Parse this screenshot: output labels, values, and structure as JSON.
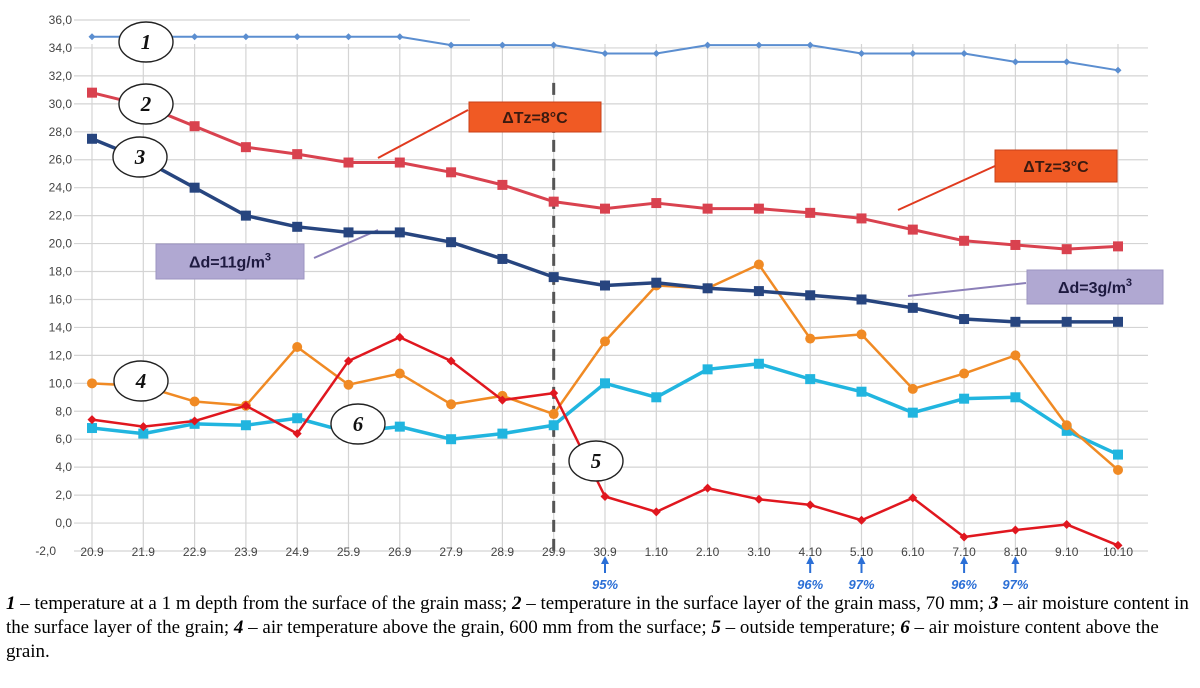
{
  "chart_data": {
    "type": "line",
    "categories": [
      "20.9",
      "21.9",
      "22.9",
      "23.9",
      "24.9",
      "25.9",
      "26.9",
      "27.9",
      "28.9",
      "29.9",
      "30.9",
      "1.10",
      "2.10",
      "3.10",
      "4.10",
      "5.10",
      "6.10",
      "7.10",
      "8.10",
      "9.10",
      "10.10"
    ],
    "yticks": [
      "-2,0",
      "0,0",
      "2,0",
      "4,0",
      "6,0",
      "8,0",
      "10,0",
      "12,0",
      "14,0",
      "16,0",
      "18,0",
      "20,0",
      "22,0",
      "24,0",
      "26,0",
      "28,0",
      "30,0",
      "32,0",
      "34,0",
      "36,0"
    ],
    "ylim": [
      -2,
      36
    ],
    "grid": true,
    "series": [
      {
        "name": "1",
        "color": "#5b8ed0",
        "marker": "diamond",
        "values": [
          34.8,
          34.8,
          34.8,
          34.8,
          34.8,
          34.8,
          34.8,
          34.2,
          34.2,
          34.2,
          33.6,
          33.6,
          34.2,
          34.2,
          34.2,
          33.6,
          33.6,
          33.6,
          33.0,
          33.0,
          32.4
        ]
      },
      {
        "name": "2",
        "color": "#d9424f",
        "marker": "square",
        "values": [
          30.8,
          29.9,
          28.4,
          26.9,
          26.4,
          25.8,
          25.8,
          25.1,
          24.2,
          23.0,
          22.5,
          22.9,
          22.5,
          22.5,
          22.2,
          21.8,
          21.0,
          20.2,
          19.9,
          19.6,
          19.8
        ]
      },
      {
        "name": "3",
        "color": "#27457f",
        "marker": "square",
        "values": [
          27.5,
          26.0,
          24.0,
          22.0,
          21.2,
          20.8,
          20.8,
          20.1,
          18.9,
          17.6,
          17.0,
          17.2,
          16.8,
          16.6,
          16.3,
          16.0,
          15.4,
          14.6,
          14.4,
          14.4,
          14.4
        ]
      },
      {
        "name": "4",
        "color": "#f08a24",
        "marker": "circle",
        "values": [
          10.0,
          9.8,
          8.7,
          8.4,
          12.6,
          9.9,
          10.7,
          8.5,
          9.1,
          7.8,
          13.0,
          17.0,
          16.8,
          18.5,
          13.2,
          13.5,
          9.6,
          10.7,
          12.0,
          7.0,
          3.8
        ]
      },
      {
        "name": "5",
        "color": "#e0171f",
        "marker": "diamond",
        "values": [
          7.4,
          6.9,
          7.3,
          8.4,
          6.4,
          11.6,
          13.3,
          11.6,
          8.8,
          9.3,
          1.9,
          0.8,
          2.5,
          1.7,
          1.3,
          0.2,
          1.8,
          -1.0,
          -0.5,
          -0.1,
          -1.6
        ]
      },
      {
        "name": "6",
        "color": "#21b5df",
        "marker": "square",
        "values": [
          6.8,
          6.4,
          7.1,
          7.0,
          7.5,
          6.5,
          6.9,
          6.0,
          6.4,
          7.0,
          10.0,
          9.0,
          11.0,
          11.4,
          10.3,
          9.4,
          7.9,
          8.9,
          9.0,
          6.6,
          4.9
        ]
      }
    ],
    "divider_category": "29.9",
    "series_labels": [
      {
        "text": "1",
        "series": "1"
      },
      {
        "text": "2",
        "series": "2"
      },
      {
        "text": "3",
        "series": "3"
      },
      {
        "text": "4",
        "series": "4"
      },
      {
        "text": "5",
        "series": "5"
      },
      {
        "text": "6",
        "series": "6"
      }
    ],
    "annotations": [
      {
        "text": "ΔTz=8°C",
        "style": "orange"
      },
      {
        "text": "ΔTz=3°C",
        "style": "orange"
      },
      {
        "text": "Δd=11g/m",
        "sup": "3",
        "style": "purple"
      },
      {
        "text": "Δd=3g/m",
        "sup": "3",
        "style": "purple"
      }
    ],
    "humidity_markers": [
      {
        "category": "30.9",
        "text": "95%"
      },
      {
        "category": "4.10",
        "text": "96%"
      },
      {
        "category": "5.10",
        "text": "97%"
      },
      {
        "category": "7.10",
        "text": "96%"
      },
      {
        "category": "8.10",
        "text": "97%"
      }
    ]
  },
  "caption": {
    "parts": [
      {
        "num": "1",
        "text": " – temperature at a 1 m depth from the surface of the grain mass; "
      },
      {
        "num": "2",
        "text": " – temperature in the surface layer of the grain mass, 70 mm; "
      },
      {
        "num": "3",
        "text": " – air moisture content in the surface layer of the grain; "
      },
      {
        "num": "4",
        "text": " – air temperature above the grain, 600 mm from the surface; "
      },
      {
        "num": "5",
        "text": " – outside temperature; "
      },
      {
        "num": "6",
        "text": " – air moisture content above the grain."
      }
    ]
  }
}
